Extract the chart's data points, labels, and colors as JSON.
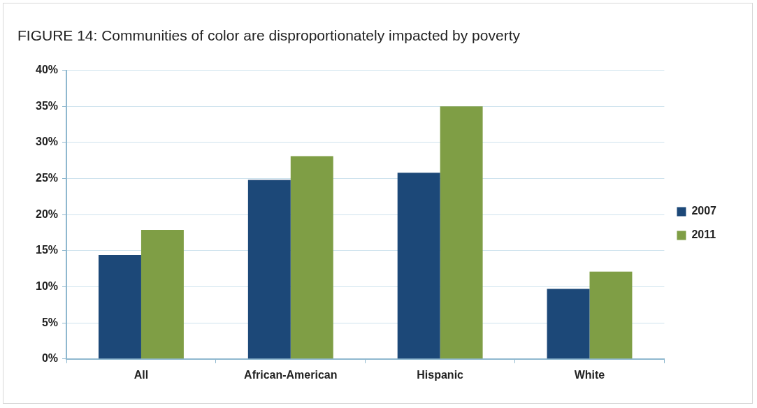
{
  "chart_data": {
    "type": "bar",
    "title": "FIGURE 14: Communities of color are disproportionately impacted by poverty",
    "categories": [
      "All",
      "African-American",
      "Hispanic",
      "White"
    ],
    "series": [
      {
        "name": "2007",
        "color": "#1c4878",
        "values": [
          14.4,
          24.8,
          25.8,
          9.7
        ]
      },
      {
        "name": "2011",
        "color": "#7f9e45",
        "values": [
          17.9,
          28.1,
          35.0,
          12.1
        ]
      }
    ],
    "ylim": [
      0,
      40
    ],
    "yticks": [
      {
        "value": 0,
        "label": "0%"
      },
      {
        "value": 5,
        "label": "5%"
      },
      {
        "value": 10,
        "label": "10%"
      },
      {
        "value": 15,
        "label": "15%"
      },
      {
        "value": 20,
        "label": "20%"
      },
      {
        "value": 25,
        "label": "25%"
      },
      {
        "value": 30,
        "label": "30%"
      },
      {
        "value": 35,
        "label": "35%"
      },
      {
        "value": 40,
        "label": "40%"
      }
    ],
    "grid": "y",
    "legend": "right"
  }
}
